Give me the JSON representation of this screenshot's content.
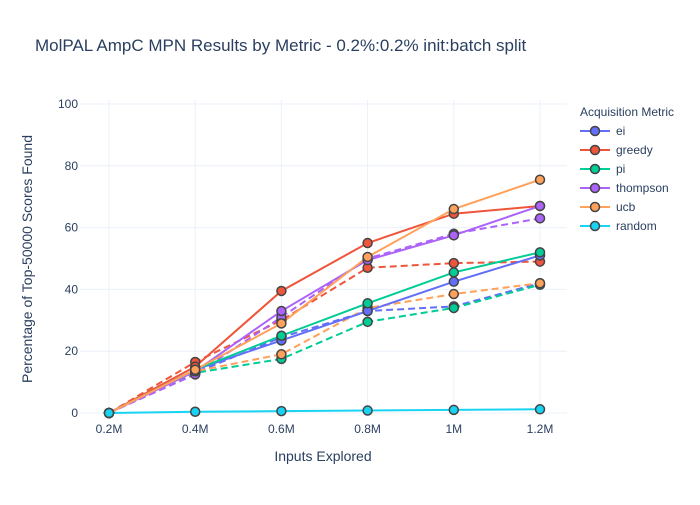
{
  "chart_data": {
    "type": "line",
    "title": "MolPAL AmpC MPN Results by Metric - 0.2%:0.2% init:batch split",
    "xlabel": "Inputs Explored",
    "ylabel": "Percentage of Top-50000 Scores Found",
    "categories": [
      "0.2M",
      "0.4M",
      "0.6M",
      "0.8M",
      "1M",
      "1.2M"
    ],
    "ylim": [
      0,
      100
    ],
    "yticks": [
      0,
      20,
      40,
      60,
      80,
      100
    ],
    "grid": true,
    "legend_title": "Acquisition Metric",
    "legend_position": "right",
    "series": [
      {
        "name": "ei",
        "color": "#636efa",
        "solid": [
          0,
          14,
          23.5,
          33,
          42.5,
          51
        ],
        "dashed": [
          0,
          13,
          24.5,
          33,
          34.5,
          42
        ]
      },
      {
        "name": "greedy",
        "color": "#ef553b",
        "solid": [
          0,
          15,
          39.5,
          55,
          64.5,
          67
        ],
        "dashed": [
          0,
          16.5,
          30,
          47,
          48.5,
          49
        ]
      },
      {
        "name": "pi",
        "color": "#00cc96",
        "solid": [
          0,
          14,
          25,
          35.5,
          45.5,
          52
        ],
        "dashed": [
          0,
          13,
          17.5,
          29.5,
          34,
          41.5
        ]
      },
      {
        "name": "thompson",
        "color": "#ab63fa",
        "solid": [
          0,
          13.5,
          33,
          49.5,
          57.5,
          67
        ],
        "dashed": [
          0,
          12.5,
          31,
          50,
          58,
          63
        ]
      },
      {
        "name": "ucb",
        "color": "#ffa15a",
        "solid": [
          0,
          14,
          29,
          50.5,
          66,
          75.5
        ],
        "dashed": [
          0,
          13.5,
          19,
          34,
          38.5,
          42
        ]
      },
      {
        "name": "random",
        "color": "#19d3f3",
        "solid": [
          0,
          0.4,
          0.6,
          0.8,
          1.0,
          1.2
        ],
        "dashed": null
      }
    ]
  }
}
